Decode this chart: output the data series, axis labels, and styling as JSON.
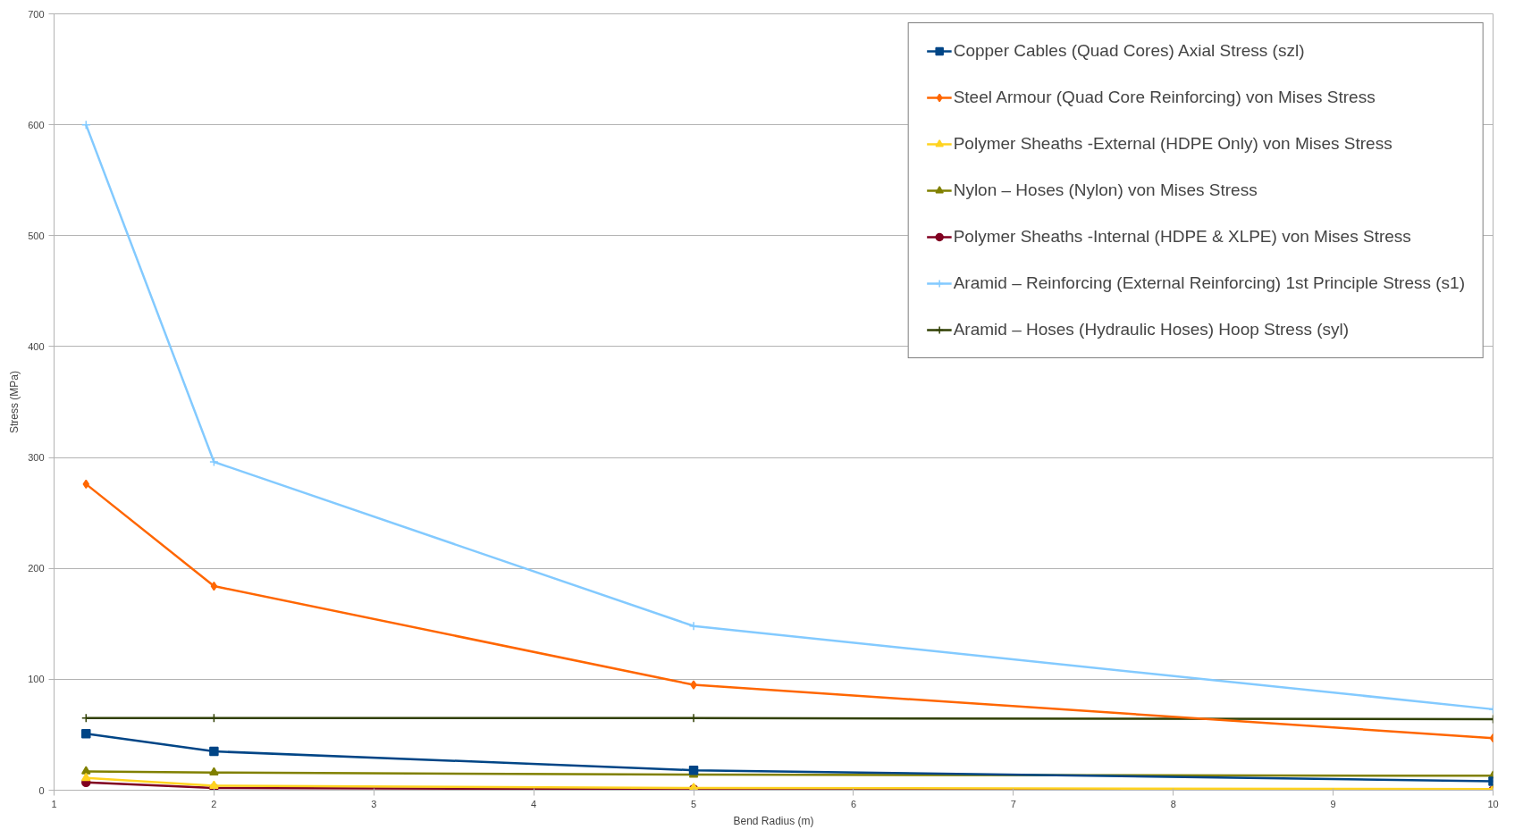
{
  "chart_data": {
    "type": "line",
    "xlabel": "Bend Radius (m)",
    "ylabel": "Stress (MPa)",
    "x": [
      1.2,
      2,
      5,
      10
    ],
    "xlim": [
      1,
      10
    ],
    "xticks": [
      1,
      2,
      3,
      4,
      5,
      6,
      7,
      8,
      9,
      10
    ],
    "ylim": [
      0,
      700
    ],
    "yticks": [
      0,
      100,
      200,
      300,
      400,
      500,
      600,
      700
    ],
    "grid": "y",
    "legend": "top right",
    "series": [
      {
        "name": "Copper Cables (Quad Cores) Axial Stress (szl)",
        "color": "#004586",
        "marker": "square",
        "values": [
          51,
          35,
          18,
          8
        ]
      },
      {
        "name": "Steel Armour (Quad Core Reinforcing) von Mises Stress",
        "color": "#ff6600",
        "marker": "diamond",
        "values": [
          276,
          184,
          95,
          47
        ]
      },
      {
        "name": "Polymer Sheaths -External (HDPE Only) von Mises Stress",
        "color": "#ffd320",
        "marker": "triangle",
        "values": [
          11,
          4,
          2,
          1
        ]
      },
      {
        "name": "Nylon – Hoses (Nylon) von Mises Stress",
        "color": "#808000",
        "marker": "triangle",
        "values": [
          17,
          16,
          14,
          13
        ]
      },
      {
        "name": "Polymer Sheaths -Internal (HDPE & XLPE) von Mises Stress",
        "color": "#800020",
        "marker": "circle",
        "values": [
          7,
          2,
          1,
          0
        ]
      },
      {
        "name": "Aramid – Reinforcing (External Reinforcing) 1st Principle Stress (s1)",
        "color": "#83caff",
        "marker": "cross",
        "values": [
          600,
          296,
          148,
          73
        ]
      },
      {
        "name": "Aramid – Hoses (Hydraulic Hoses) Hoop Stress (syl)",
        "color": "#314004",
        "marker": "cross",
        "values": [
          65,
          65,
          65,
          64
        ]
      }
    ]
  }
}
